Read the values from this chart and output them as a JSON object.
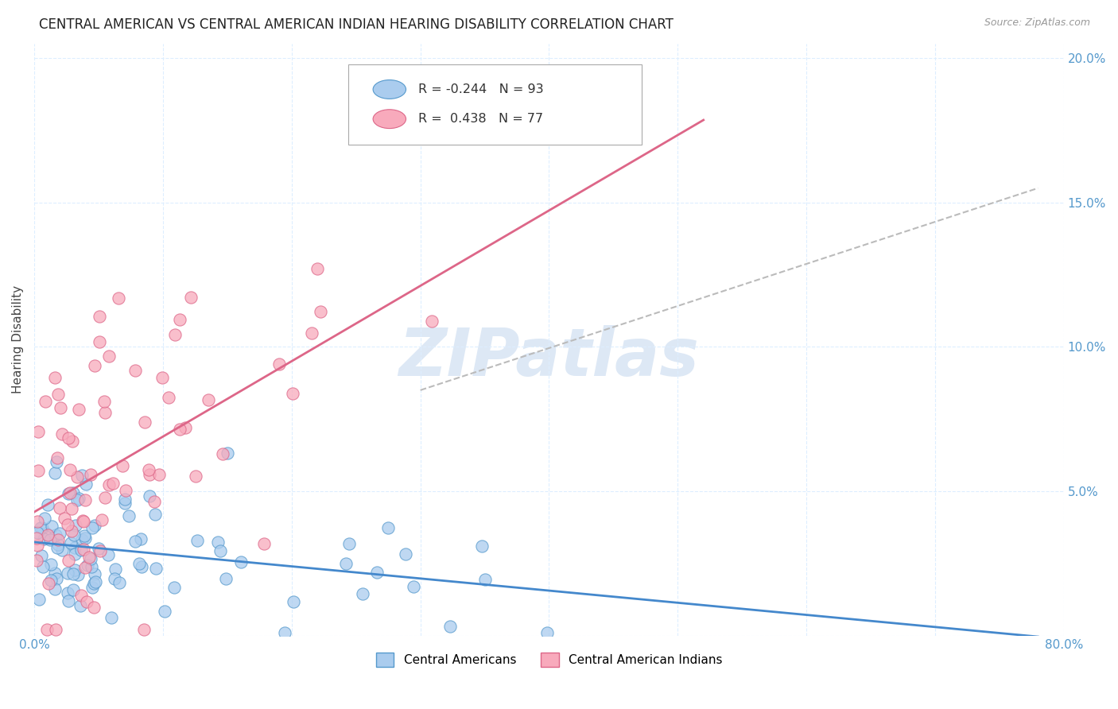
{
  "title": "CENTRAL AMERICAN VS CENTRAL AMERICAN INDIAN HEARING DISABILITY CORRELATION CHART",
  "source": "Source: ZipAtlas.com",
  "ylabel": "Hearing Disability",
  "xlim": [
    0.0,
    0.8
  ],
  "ylim": [
    0.0,
    0.205
  ],
  "xtick_positions": [
    0.0,
    0.1,
    0.2,
    0.3,
    0.4,
    0.5,
    0.6,
    0.7,
    0.8
  ],
  "xticklabels": [
    "0.0%",
    "",
    "",
    "",
    "",
    "",
    "",
    "",
    "80.0%"
  ],
  "ytick_positions": [
    0.0,
    0.05,
    0.1,
    0.15,
    0.2
  ],
  "yticklabels": [
    "",
    "5.0%",
    "10.0%",
    "15.0%",
    "20.0%"
  ],
  "blue_fill": "#aaccee",
  "blue_edge": "#5599cc",
  "pink_fill": "#f8aabc",
  "pink_edge": "#dd6688",
  "blue_trend_color": "#4488cc",
  "pink_trend_color": "#dd6688",
  "dashed_color": "#bbbbbb",
  "watermark_color": "#dde8f5",
  "legend_R_blue": "-0.244",
  "legend_N_blue": "93",
  "legend_R_pink": "0.438",
  "legend_N_pink": "77",
  "legend_label_blue": "Central Americans",
  "legend_label_pink": "Central American Indians",
  "title_fontsize": 12,
  "tick_fontsize": 11,
  "tick_color": "#5599cc",
  "seed": 17
}
